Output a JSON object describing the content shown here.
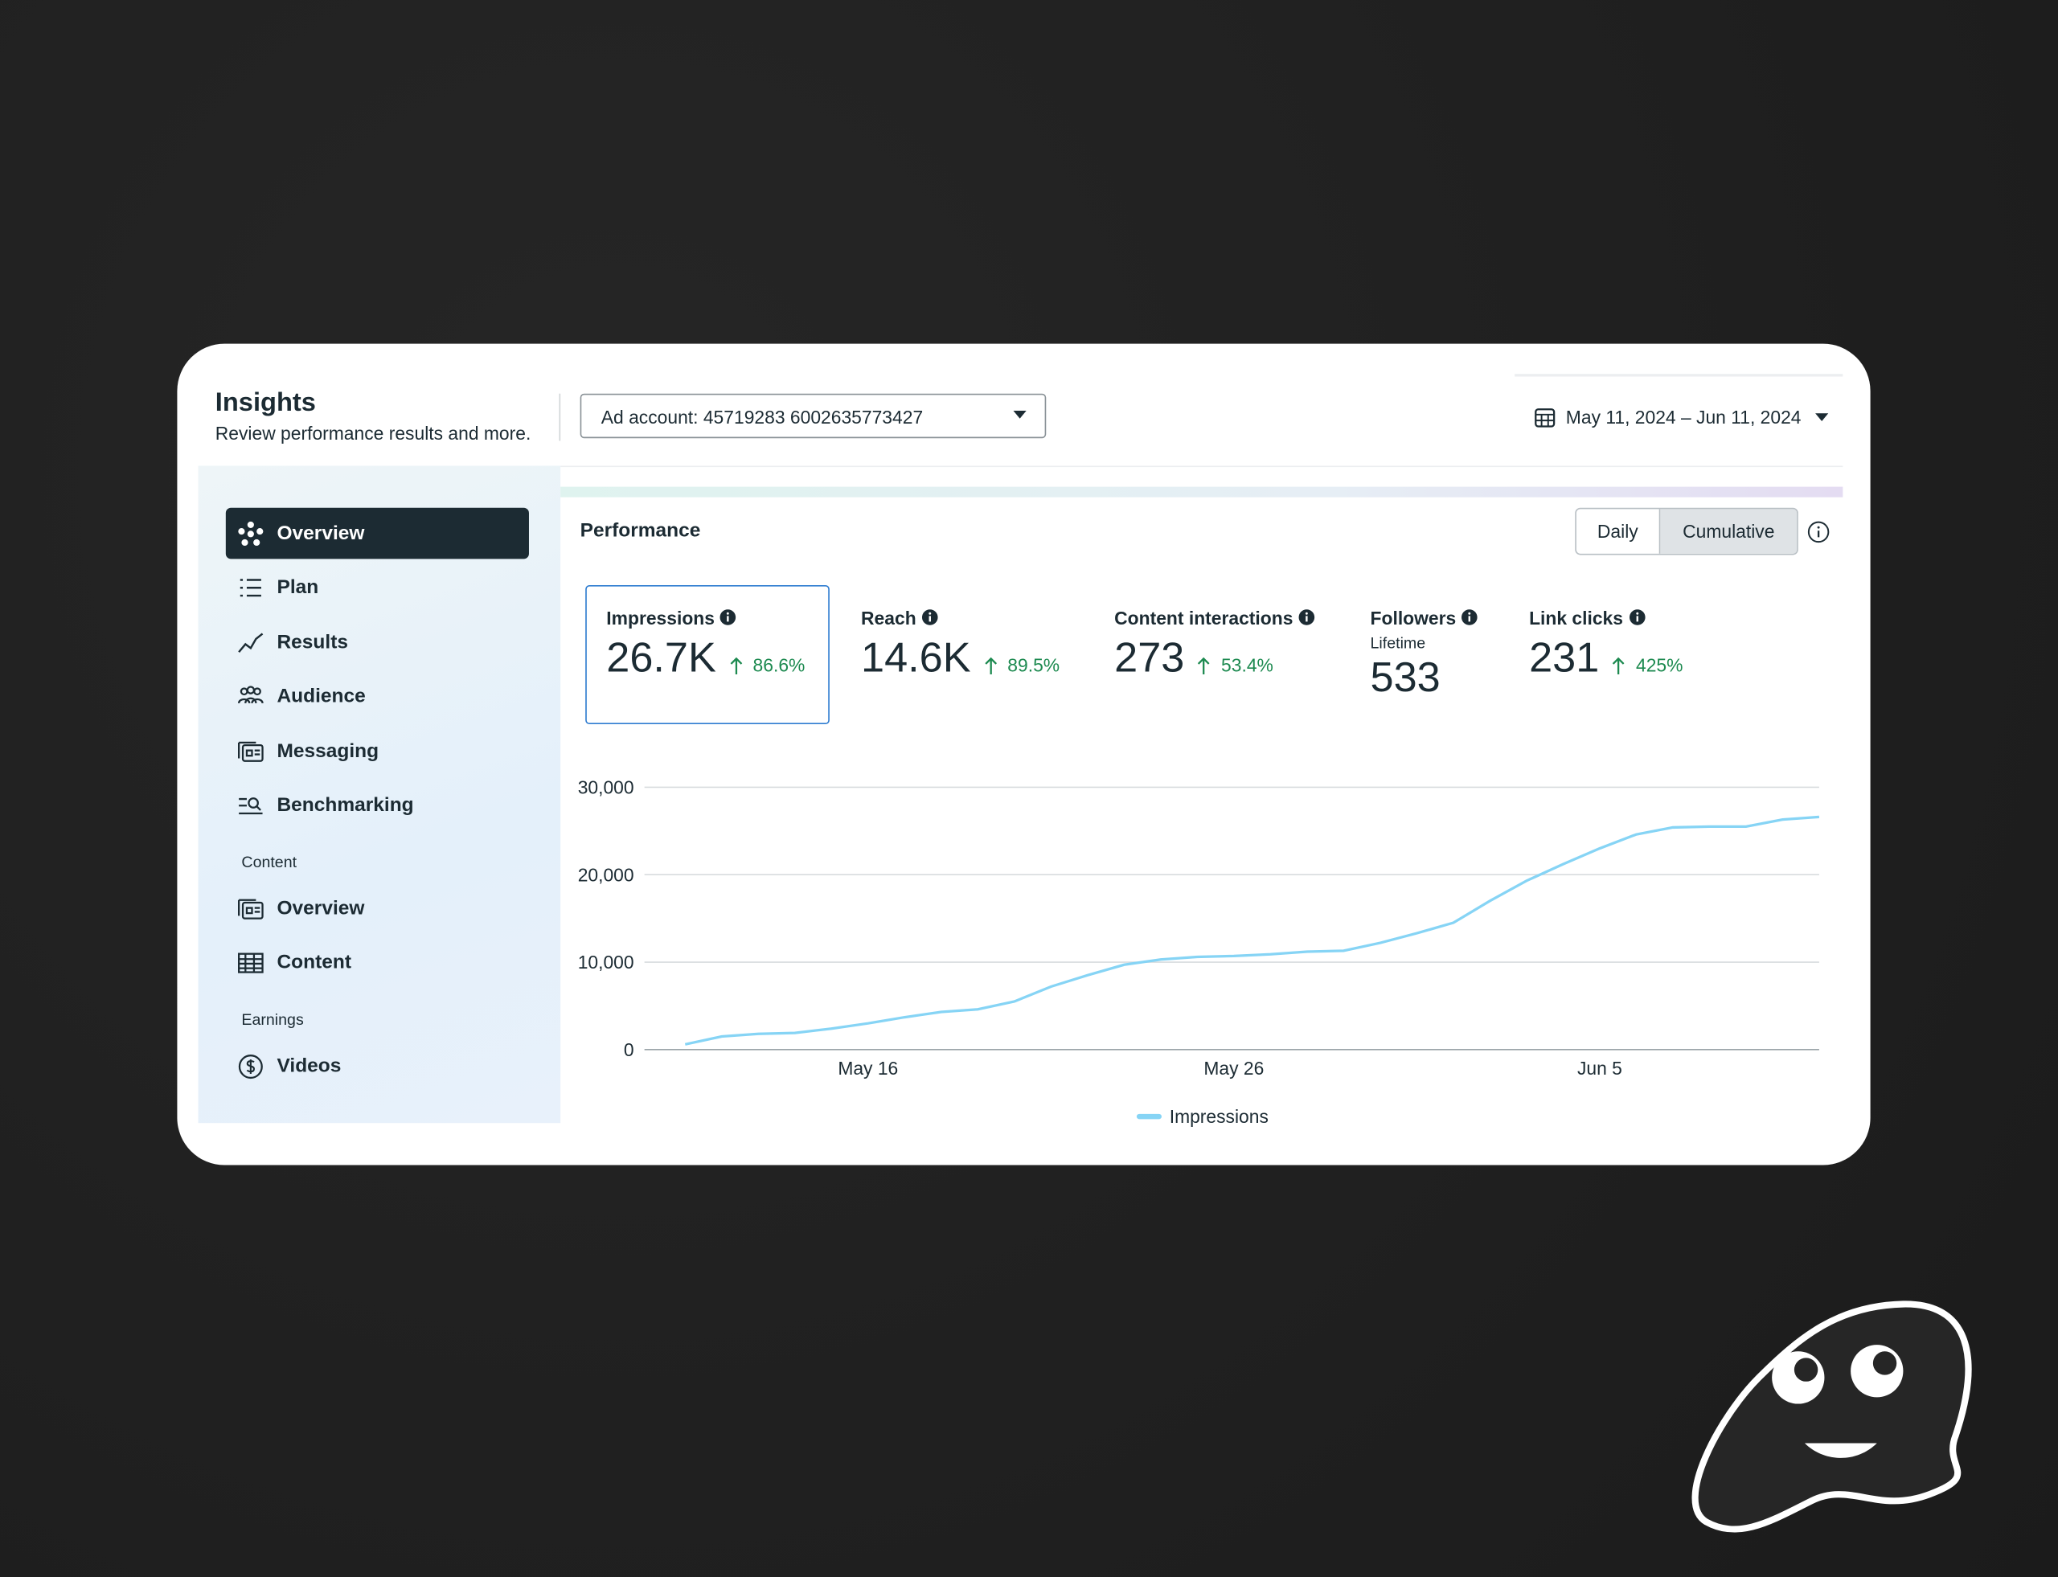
{
  "header": {
    "title": "Insights",
    "subtitle": "Review performance results and more.",
    "account_selector": "Ad account: 45719283 6002635773427",
    "date_range": "May 11, 2024 – Jun 11, 2024"
  },
  "nav": {
    "main": [
      "Overview",
      "Plan",
      "Results",
      "Audience",
      "Messaging",
      "Benchmarking"
    ],
    "content": {
      "heading": "Content",
      "items": [
        "Overview",
        "Content"
      ]
    },
    "earnings": {
      "heading": "Earnings",
      "items": [
        "Videos"
      ]
    }
  },
  "performance": {
    "title": "Performance",
    "toggle": [
      "Daily",
      "Cumulative"
    ],
    "metrics": [
      {
        "label": "Impressions",
        "value": "26.7K",
        "change": "86.6%"
      },
      {
        "label": "Reach",
        "value": "14.6K",
        "change": "89.5%"
      },
      {
        "label": "Content interactions",
        "value": "273",
        "change": "53.4%"
      },
      {
        "label": "Followers",
        "sublabel": "Lifetime",
        "value": "533"
      },
      {
        "label": "Link clicks",
        "value": "231",
        "change": "425%"
      }
    ]
  },
  "chart_data": {
    "type": "line",
    "categories": [
      null,
      null,
      null,
      null,
      null,
      "May 16",
      null,
      null,
      null,
      null,
      null,
      null,
      null,
      null,
      null,
      "May 26",
      null,
      null,
      null,
      null,
      null,
      null,
      null,
      null,
      null,
      "Jun 5",
      null,
      null,
      null,
      null,
      null,
      null
    ],
    "series": [
      {
        "name": "Impressions",
        "color": "#86d4f5",
        "values": [
          600,
          1500,
          1800,
          1900,
          2400,
          3000,
          3700,
          4300,
          4600,
          5500,
          7200,
          8500,
          9700,
          10300,
          10600,
          10700,
          10900,
          11200,
          11300,
          12200,
          13300,
          14500,
          17000,
          19300,
          21200,
          23000,
          24600,
          25400,
          25500,
          25500,
          26300,
          26600
        ]
      }
    ],
    "ylim": [
      0,
      30000
    ],
    "yticks": [
      0,
      {
        "value": 10000,
        "label": "10,000"
      },
      {
        "value": 20000,
        "label": "20,000"
      },
      {
        "value": 30000,
        "label": "30,000"
      }
    ],
    "grid": true
  }
}
